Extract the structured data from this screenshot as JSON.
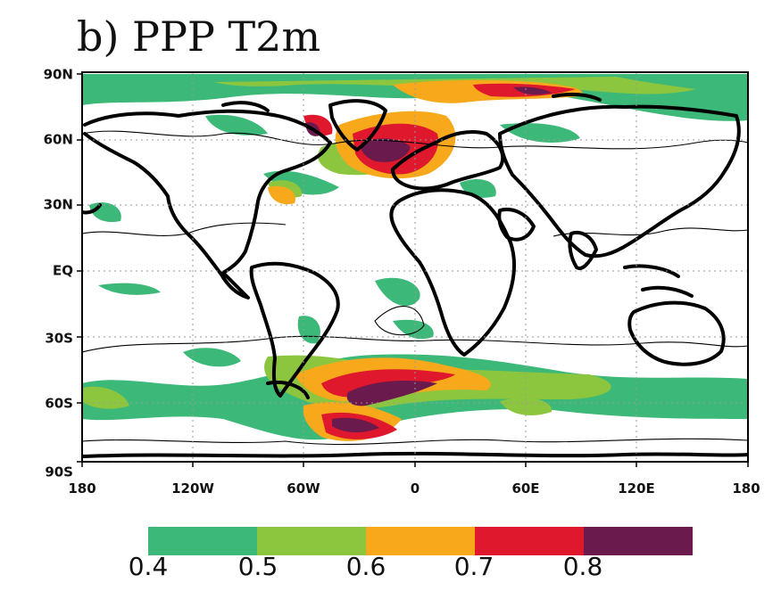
{
  "title": "b) PPP T2m",
  "map": {
    "lat_ticks": [
      "90N",
      "60N",
      "30N",
      "EQ",
      "30S",
      "60S",
      "90S"
    ],
    "lon_ticks": [
      "180",
      "120W",
      "60W",
      "0",
      "60E",
      "120E",
      "180"
    ]
  },
  "colorbar": {
    "labels": [
      "0.4",
      "0.5",
      "0.6",
      "0.7",
      "0.8"
    ],
    "bins": [
      {
        "from": 0.4,
        "to": 0.5,
        "color": "#3cb878"
      },
      {
        "from": 0.5,
        "to": 0.6,
        "color": "#8cc63f"
      },
      {
        "from": 0.6,
        "to": 0.7,
        "color": "#f7a81b"
      },
      {
        "from": 0.7,
        "to": 0.8,
        "color": "#e0182d"
      },
      {
        "from": 0.8,
        "to": 0.9,
        "color": "#6a1a4c"
      }
    ]
  }
}
